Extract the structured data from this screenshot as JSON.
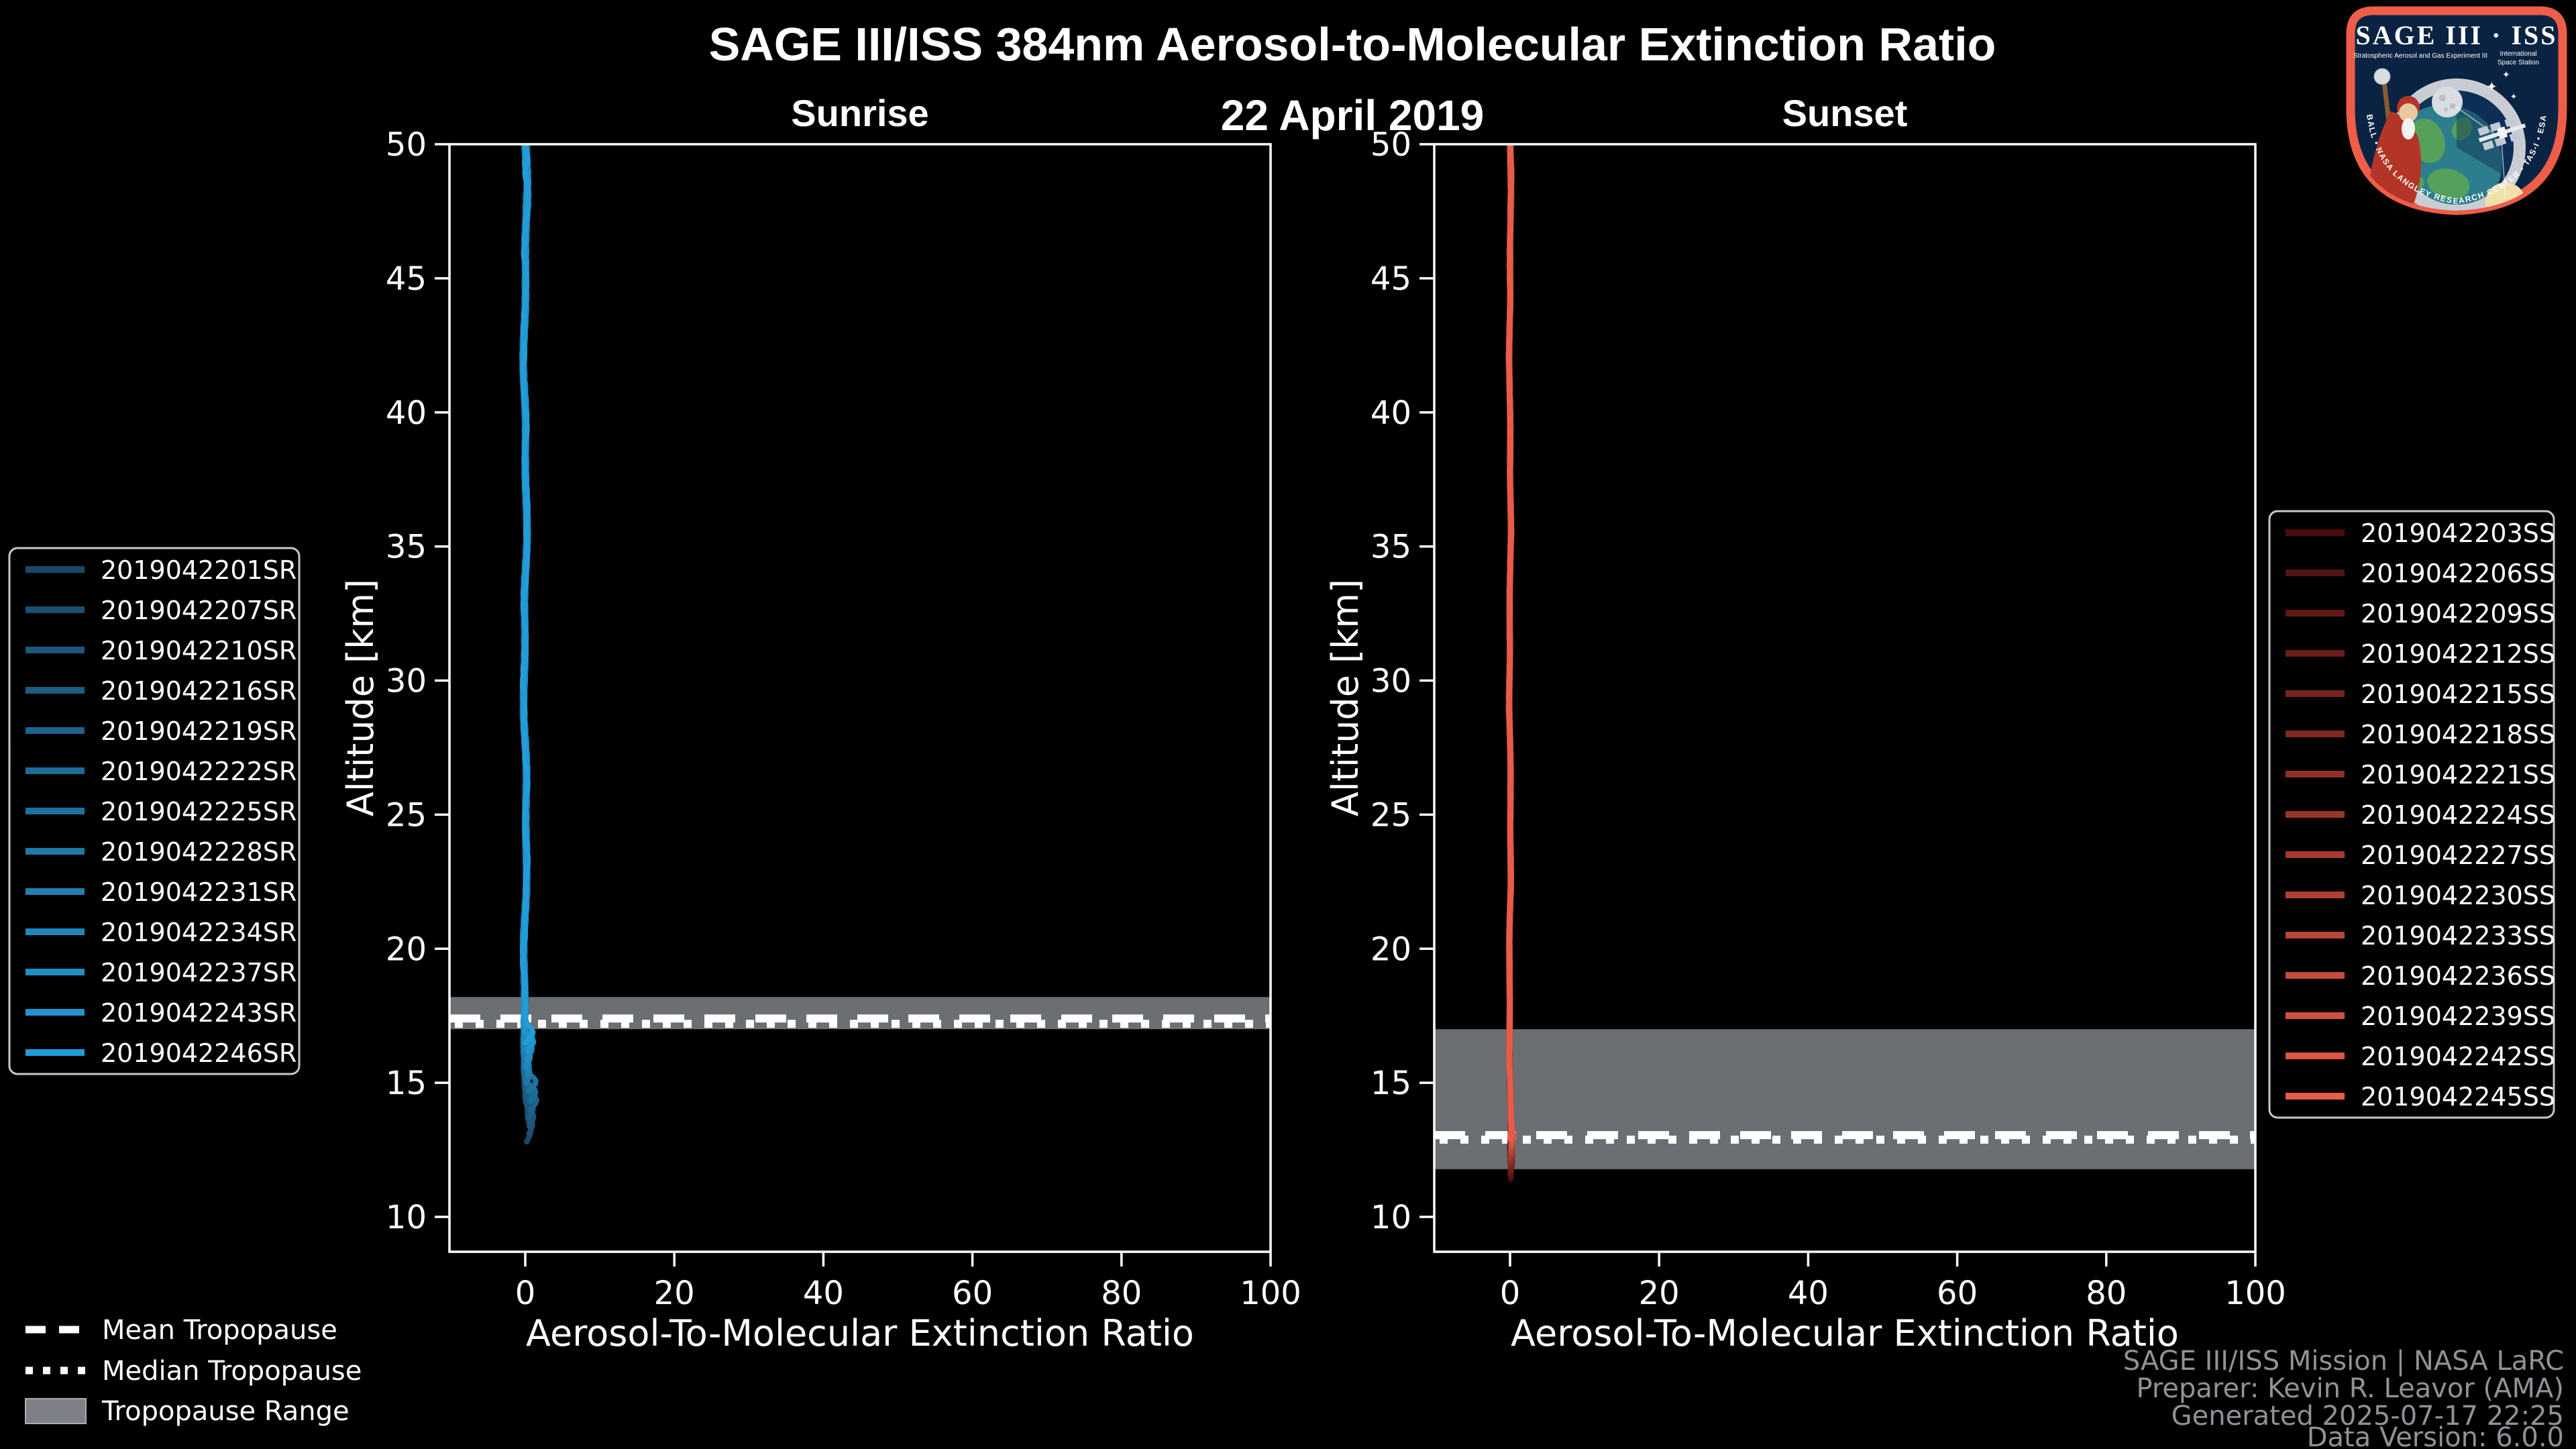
{
  "title": "SAGE III/ISS 384nm Aerosol-to-Molecular Extinction Ratio",
  "date_title": "22 April 2019",
  "panels": [
    {
      "title": "Sunrise",
      "xlabel": "Aerosol-To-Molecular Extinction Ratio",
      "ylabel": "Altitude [km]"
    },
    {
      "title": "Sunset",
      "xlabel": "Aerosol-To-Molecular Extinction Ratio",
      "ylabel": "Altitude [km]"
    }
  ],
  "tropopause_legend": {
    "mean": "Mean Tropopause",
    "median": "Median Tropopause",
    "range": "Tropopause Range"
  },
  "footer": {
    "lines": [
      "SAGE III/ISS Mission | NASA LaRC",
      "Preparer: Kevin R. Leavor (AMA)",
      "Generated 2025-07-17 22:25",
      "Data Version: 6.0.0"
    ]
  },
  "logo": {
    "title": "SAGE III · ISS",
    "subtitle_left": "Stratospheric Aerosol and Gas Experiment III",
    "subtitle_right_1": "International",
    "subtitle_right_2": "Space Station",
    "ring_text": "BALL  •  NASA LANGLEY RESEARCH CENTER  •  TAS-I  •  ESA"
  },
  "colors": {
    "background": "#000000",
    "frame": "#ffffff",
    "tropopause_band": "#6b6e73",
    "tropopause_line": "#ffffff",
    "legend_border": "#c8c8c8",
    "footer_text": "#8f9296",
    "sunrise_accent": "#219CD8",
    "sunset_accent": "#E85C48",
    "logo_border": "#ee5d48",
    "logo_field": "#0b2342"
  },
  "chart_data": [
    {
      "type": "line",
      "panel": "Sunrise",
      "xlabel": "Aerosol-To-Molecular Extinction Ratio",
      "ylabel": "Altitude [km]",
      "xlim": [
        -10.17,
        100
      ],
      "ylim": [
        8.7,
        50
      ],
      "xticks": [
        0,
        20,
        40,
        60,
        80,
        100
      ],
      "yticks": [
        50,
        45,
        40,
        35,
        30,
        25,
        20,
        15,
        10
      ],
      "grid": false,
      "legend_position": "outside-left",
      "description": "13 sunrise extinction-ratio profiles clustered near ratio 0, extending from 50 km down to ~12.8-16.5 km with small rightward excursions below the tropopause",
      "tropopause": {
        "mean_km": 17.4,
        "median_km": 17.2,
        "range_km": [
          17.0,
          18.2
        ]
      },
      "series": [
        {
          "label": "2019042201SR",
          "color": "#1B4866",
          "x_center": 0,
          "top_km": 50,
          "bottom_km": 12.8
        },
        {
          "label": "2019042207SR",
          "color": "#1C4F70",
          "x_center": 0,
          "top_km": 50,
          "bottom_km": 13.1
        },
        {
          "label": "2019042210SR",
          "color": "#1C5679",
          "x_center": 0,
          "top_km": 50,
          "bottom_km": 13.4
        },
        {
          "label": "2019042216SR",
          "color": "#1D5D82",
          "x_center": 0,
          "top_km": 50,
          "bottom_km": 13.7
        },
        {
          "label": "2019042219SR",
          "color": "#1D648C",
          "x_center": 0,
          "top_km": 50,
          "bottom_km": 14.0
        },
        {
          "label": "2019042222SR",
          "color": "#1E6B95",
          "x_center": 0,
          "top_km": 50,
          "bottom_km": 14.3
        },
        {
          "label": "2019042225SR",
          "color": "#1E729F",
          "x_center": 0,
          "top_km": 50,
          "bottom_km": 14.7
        },
        {
          "label": "2019042228SR",
          "color": "#1F79A8",
          "x_center": 0,
          "top_km": 50,
          "bottom_km": 15.0
        },
        {
          "label": "2019042231SR",
          "color": "#1F80B2",
          "x_center": 0,
          "top_km": 50,
          "bottom_km": 15.3
        },
        {
          "label": "2019042234SR",
          "color": "#2087BB",
          "x_center": 0,
          "top_km": 50,
          "bottom_km": 15.6
        },
        {
          "label": "2019042237SR",
          "color": "#208EC5",
          "x_center": 0,
          "top_km": 50,
          "bottom_km": 15.9
        },
        {
          "label": "2019042243SR",
          "color": "#2195CE",
          "x_center": 0,
          "top_km": 50,
          "bottom_km": 16.2
        },
        {
          "label": "2019042246SR",
          "color": "#219CD8",
          "x_center": 0,
          "top_km": 50,
          "bottom_km": 16.5
        }
      ]
    },
    {
      "type": "line",
      "panel": "Sunset",
      "xlabel": "Aerosol-To-Molecular Extinction Ratio",
      "ylabel": "Altitude [km]",
      "xlim": [
        -10.17,
        100
      ],
      "ylim": [
        8.7,
        50
      ],
      "xticks": [
        0,
        20,
        40,
        60,
        80,
        100
      ],
      "yticks": [
        50,
        45,
        40,
        35,
        30,
        25,
        20,
        15,
        10
      ],
      "grid": false,
      "legend_position": "outside-right",
      "description": "15 sunset extinction-ratio profiles clustered near ratio 0, extending from 50 km down to ~11.4-12.9 km",
      "tropopause": {
        "mean_km": 13.05,
        "median_km": 12.88,
        "range_km": [
          11.78,
          17.0
        ]
      },
      "series": [
        {
          "label": "2019042203SS",
          "color": "#4A0D0D",
          "x_center": 0,
          "top_km": 50,
          "bottom_km": 11.4
        },
        {
          "label": "2019042206SS",
          "color": "#551311",
          "x_center": 0,
          "top_km": 50,
          "bottom_km": 11.51
        },
        {
          "label": "2019042209SS",
          "color": "#611815",
          "x_center": 0,
          "top_km": 50,
          "bottom_km": 11.61
        },
        {
          "label": "2019042212SS",
          "color": "#6C1E1A",
          "x_center": 0,
          "top_km": 50,
          "bottom_km": 11.72
        },
        {
          "label": "2019042215SS",
          "color": "#77241E",
          "x_center": 0,
          "top_km": 50,
          "bottom_km": 11.83
        },
        {
          "label": "2019042218SS",
          "color": "#822922",
          "x_center": 0,
          "top_km": 50,
          "bottom_km": 11.94
        },
        {
          "label": "2019042221SS",
          "color": "#8E2F26",
          "x_center": 0,
          "top_km": 50,
          "bottom_km": 12.04
        },
        {
          "label": "2019042224SS",
          "color": "#99342B",
          "x_center": 0,
          "top_km": 50,
          "bottom_km": 12.15
        },
        {
          "label": "2019042227SS",
          "color": "#A43A2F",
          "x_center": 0,
          "top_km": 50,
          "bottom_km": 12.26
        },
        {
          "label": "2019042230SS",
          "color": "#B04033",
          "x_center": 0,
          "top_km": 50,
          "bottom_km": 12.36
        },
        {
          "label": "2019042233SS",
          "color": "#BB4537",
          "x_center": 0,
          "top_km": 50,
          "bottom_km": 12.47
        },
        {
          "label": "2019042236SS",
          "color": "#C64B3C",
          "x_center": 0,
          "top_km": 50,
          "bottom_km": 12.58
        },
        {
          "label": "2019042239SS",
          "color": "#D15140",
          "x_center": 0,
          "top_km": 50,
          "bottom_km": 12.68
        },
        {
          "label": "2019042242SS",
          "color": "#DD5644",
          "x_center": 0,
          "top_km": 50,
          "bottom_km": 12.79
        },
        {
          "label": "2019042245SS",
          "color": "#E85C48",
          "x_center": 0,
          "top_km": 50,
          "bottom_km": 12.9
        }
      ]
    }
  ]
}
